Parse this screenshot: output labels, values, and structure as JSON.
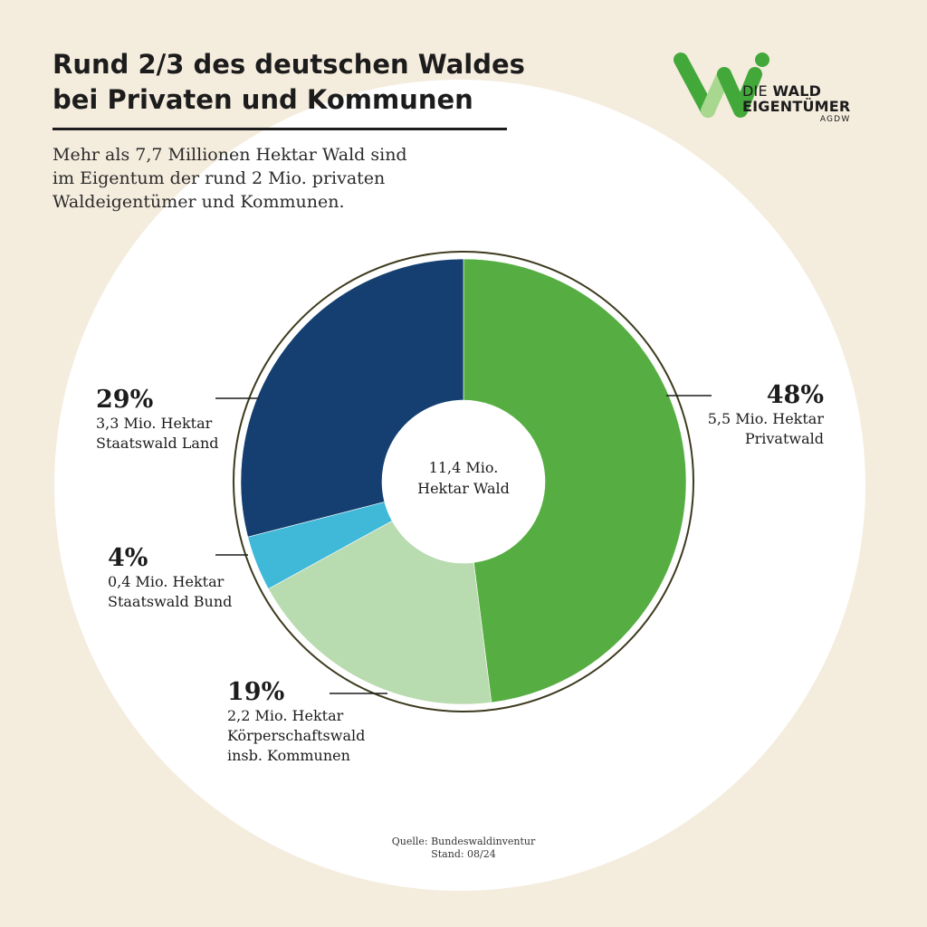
{
  "header": {
    "title_line1": "Rund 2/3 des deutschen Waldes",
    "title_line2": "bei Privaten und Kommunen",
    "subtitle_line1": "Mehr als 7,7 Millionen Hektar Wald sind",
    "subtitle_line2": "im Eigentum der rund 2 Mio. privaten",
    "subtitle_line3": "Waldeigentümer und Kommunen."
  },
  "logo": {
    "line1_a": "DIE",
    "line1_b": "WALD",
    "line2": "EIGENTÜMER",
    "line3": "AGDW",
    "color_dark": "#43a83a",
    "color_light": "#a8d88f"
  },
  "chart_data": {
    "type": "pie",
    "style": "donut",
    "center_label": [
      "11,4 Mio.",
      "Hektar Wald"
    ],
    "total": 11.4,
    "unit": "Mio. Hektar",
    "slices": [
      {
        "percent": 48,
        "percent_label": "48%",
        "value": 5.5,
        "value_label": "5,5 Mio. Hektar",
        "label": [
          "Privatwald"
        ],
        "color": "#56ae43"
      },
      {
        "percent": 19,
        "percent_label": "19%",
        "value": 2.2,
        "value_label": "2,2 Mio. Hektar",
        "label": [
          "Körperschaftswald",
          "insb. Kommunen"
        ],
        "color": "#b9dbb0"
      },
      {
        "percent": 4,
        "percent_label": "4%",
        "value": 0.4,
        "value_label": "0,4 Mio. Hektar",
        "label": [
          "Staatswald Bund"
        ],
        "color": "#40b8d8"
      },
      {
        "percent": 29,
        "percent_label": "29%",
        "value": 3.3,
        "value_label": "3,3 Mio. Hektar",
        "label": [
          "Staatswald Land"
        ],
        "color": "#143f70"
      }
    ],
    "outline_color": "#3d3a1e"
  },
  "source": {
    "line1": "Quelle: Bundeswaldinventur",
    "line2": "Stand: 08/24"
  }
}
